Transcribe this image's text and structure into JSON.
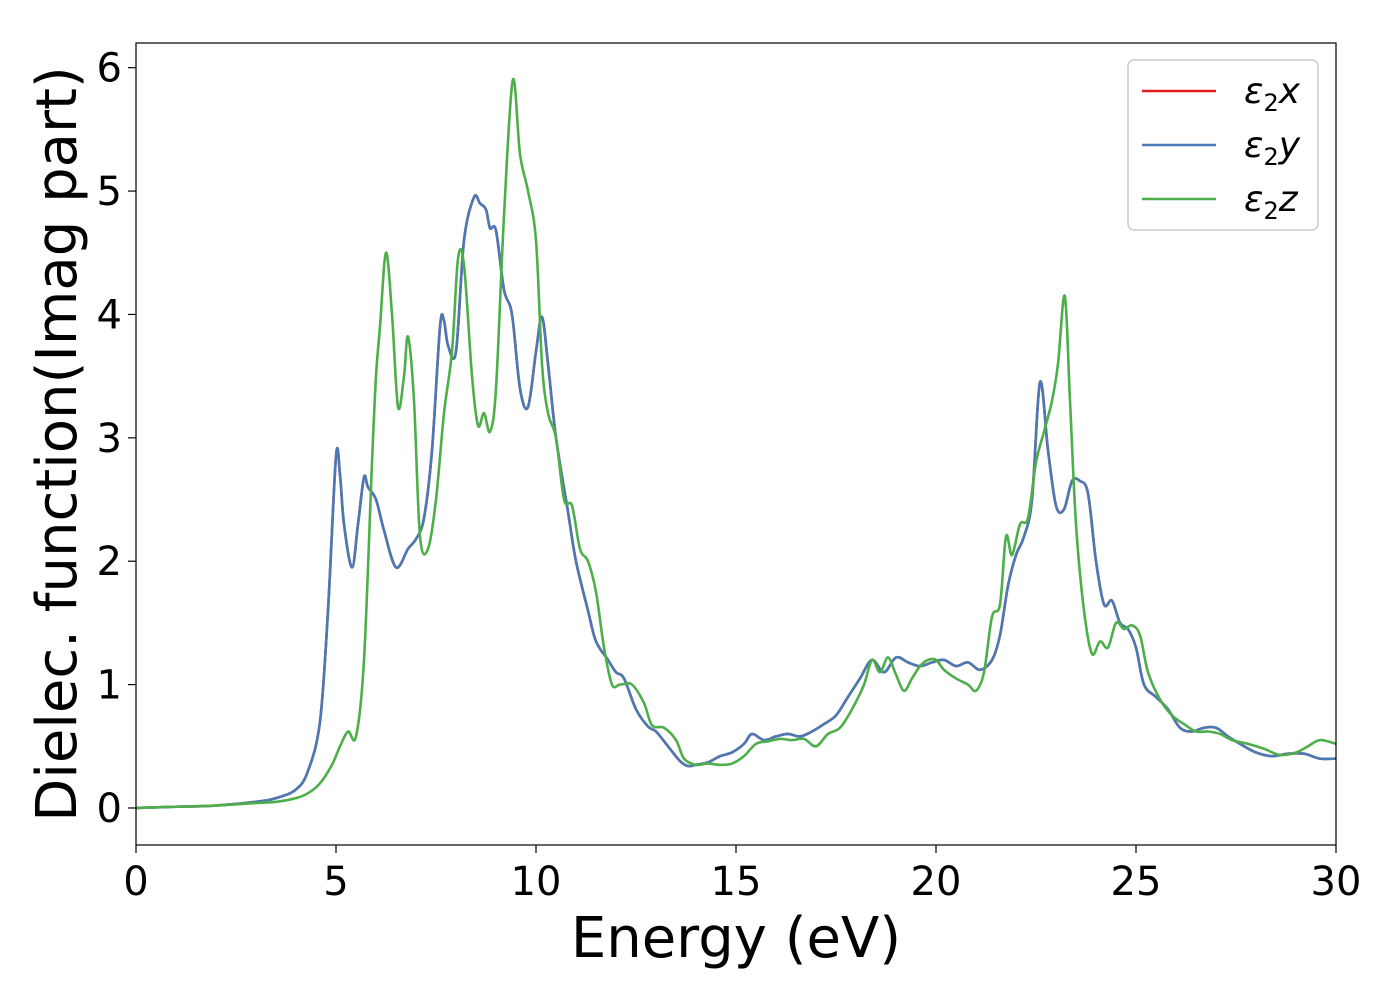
{
  "chart_data": {
    "type": "line",
    "xlabel": "Energy (eV)",
    "ylabel": "Dielec. function(Imag part)",
    "xlim": [
      0,
      30
    ],
    "ylim": [
      -0.3,
      6.2
    ],
    "xticks": [
      "0",
      "5",
      "10",
      "15",
      "20",
      "25",
      "30"
    ],
    "yticks": [
      "0",
      "1",
      "2",
      "3",
      "4",
      "5",
      "6"
    ],
    "grid": false,
    "legend_position": "top-right",
    "series": [
      {
        "name": "ε2x",
        "legend_base": "ε",
        "legend_sub": "2",
        "legend_tail": "x",
        "color": "#e41a1c",
        "x": [
          0,
          1,
          2,
          3,
          3.5,
          4,
          4.3,
          4.6,
          4.8,
          5.0,
          5.1,
          5.2,
          5.4,
          5.55,
          5.7,
          5.8,
          6.0,
          6.2,
          6.5,
          6.8,
          7.0,
          7.2,
          7.4,
          7.6,
          7.7,
          7.8,
          8.0,
          8.2,
          8.45,
          8.6,
          8.75,
          8.85,
          9.0,
          9.2,
          9.4,
          9.6,
          9.8,
          10.0,
          10.15,
          10.3,
          10.5,
          10.8,
          11.0,
          11.3,
          11.5,
          11.8,
          12.0,
          12.2,
          12.5,
          12.8,
          13.0,
          13.3,
          13.6,
          13.8,
          14.0,
          14.3,
          14.6,
          14.9,
          15.2,
          15.4,
          15.7,
          16.0,
          16.3,
          16.6,
          16.9,
          17.2,
          17.5,
          17.8,
          18.1,
          18.4,
          18.7,
          19.0,
          19.3,
          19.6,
          19.9,
          20.2,
          20.5,
          20.8,
          21.1,
          21.4,
          21.6,
          21.8,
          22.0,
          22.2,
          22.4,
          22.6,
          22.8,
          23.0,
          23.2,
          23.4,
          23.6,
          23.8,
          24.0,
          24.2,
          24.4,
          24.6,
          24.8,
          25.0,
          25.2,
          25.5,
          25.8,
          26.1,
          26.4,
          26.7,
          27.0,
          27.3,
          27.6,
          28.0,
          28.4,
          28.8,
          29.2,
          29.6,
          30.0
        ],
        "y": [
          0.0,
          0.01,
          0.02,
          0.05,
          0.08,
          0.15,
          0.3,
          0.7,
          1.6,
          2.85,
          2.7,
          2.3,
          1.95,
          2.3,
          2.68,
          2.6,
          2.5,
          2.25,
          1.95,
          2.1,
          2.18,
          2.35,
          2.9,
          3.9,
          3.95,
          3.75,
          3.7,
          4.6,
          4.95,
          4.9,
          4.85,
          4.7,
          4.68,
          4.2,
          4.0,
          3.4,
          3.25,
          3.7,
          3.98,
          3.6,
          3.0,
          2.4,
          2.0,
          1.6,
          1.35,
          1.2,
          1.1,
          1.05,
          0.8,
          0.66,
          0.62,
          0.5,
          0.38,
          0.34,
          0.35,
          0.37,
          0.42,
          0.45,
          0.52,
          0.6,
          0.55,
          0.58,
          0.6,
          0.58,
          0.62,
          0.68,
          0.75,
          0.9,
          1.05,
          1.2,
          1.1,
          1.22,
          1.18,
          1.15,
          1.18,
          1.2,
          1.15,
          1.18,
          1.12,
          1.2,
          1.4,
          1.8,
          2.05,
          2.2,
          2.5,
          3.45,
          2.9,
          2.45,
          2.42,
          2.65,
          2.65,
          2.55,
          2.0,
          1.65,
          1.68,
          1.5,
          1.45,
          1.3,
          1.0,
          0.9,
          0.8,
          0.65,
          0.62,
          0.65,
          0.65,
          0.58,
          0.52,
          0.45,
          0.42,
          0.44,
          0.44,
          0.4,
          0.4
        ]
      },
      {
        "name": "ε2y",
        "legend_base": "ε",
        "legend_sub": "2",
        "legend_tail": "y",
        "color": "#4a7ab5",
        "x": [
          0,
          1,
          2,
          3,
          3.5,
          4,
          4.3,
          4.6,
          4.8,
          5.0,
          5.1,
          5.2,
          5.4,
          5.55,
          5.7,
          5.8,
          6.0,
          6.2,
          6.5,
          6.8,
          7.0,
          7.2,
          7.4,
          7.6,
          7.7,
          7.8,
          8.0,
          8.2,
          8.45,
          8.6,
          8.75,
          8.85,
          9.0,
          9.2,
          9.4,
          9.6,
          9.8,
          10.0,
          10.15,
          10.3,
          10.5,
          10.8,
          11.0,
          11.3,
          11.5,
          11.8,
          12.0,
          12.2,
          12.5,
          12.8,
          13.0,
          13.3,
          13.6,
          13.8,
          14.0,
          14.3,
          14.6,
          14.9,
          15.2,
          15.4,
          15.7,
          16.0,
          16.3,
          16.6,
          16.9,
          17.2,
          17.5,
          17.8,
          18.1,
          18.4,
          18.7,
          19.0,
          19.3,
          19.6,
          19.9,
          20.2,
          20.5,
          20.8,
          21.1,
          21.4,
          21.6,
          21.8,
          22.0,
          22.2,
          22.4,
          22.6,
          22.8,
          23.0,
          23.2,
          23.4,
          23.6,
          23.8,
          24.0,
          24.2,
          24.4,
          24.6,
          24.8,
          25.0,
          25.2,
          25.5,
          25.8,
          26.1,
          26.4,
          26.7,
          27.0,
          27.3,
          27.6,
          28.0,
          28.4,
          28.8,
          29.2,
          29.6,
          30.0
        ],
        "y": [
          0.0,
          0.01,
          0.02,
          0.05,
          0.08,
          0.15,
          0.3,
          0.7,
          1.6,
          2.85,
          2.7,
          2.3,
          1.95,
          2.3,
          2.68,
          2.6,
          2.5,
          2.25,
          1.95,
          2.1,
          2.18,
          2.35,
          2.9,
          3.9,
          3.95,
          3.75,
          3.7,
          4.6,
          4.95,
          4.9,
          4.85,
          4.7,
          4.68,
          4.2,
          4.0,
          3.4,
          3.25,
          3.7,
          3.98,
          3.6,
          3.0,
          2.4,
          2.0,
          1.6,
          1.35,
          1.2,
          1.1,
          1.05,
          0.8,
          0.66,
          0.62,
          0.5,
          0.38,
          0.34,
          0.35,
          0.37,
          0.42,
          0.45,
          0.52,
          0.6,
          0.55,
          0.58,
          0.6,
          0.58,
          0.62,
          0.68,
          0.75,
          0.9,
          1.05,
          1.2,
          1.1,
          1.22,
          1.18,
          1.15,
          1.18,
          1.2,
          1.15,
          1.18,
          1.12,
          1.2,
          1.4,
          1.8,
          2.05,
          2.2,
          2.5,
          3.45,
          2.9,
          2.45,
          2.42,
          2.65,
          2.65,
          2.55,
          2.0,
          1.65,
          1.68,
          1.5,
          1.45,
          1.3,
          1.0,
          0.9,
          0.8,
          0.65,
          0.62,
          0.65,
          0.65,
          0.58,
          0.52,
          0.45,
          0.42,
          0.44,
          0.44,
          0.4,
          0.4
        ]
      },
      {
        "name": "ε2z",
        "legend_base": "ε",
        "legend_sub": "2",
        "legend_tail": "z",
        "color": "#4daf4a",
        "x": [
          0,
          1,
          2,
          3,
          3.5,
          4,
          4.3,
          4.6,
          4.9,
          5.1,
          5.3,
          5.5,
          5.7,
          5.9,
          6.0,
          6.1,
          6.25,
          6.4,
          6.55,
          6.7,
          6.8,
          6.95,
          7.1,
          7.3,
          7.5,
          7.7,
          7.9,
          8.05,
          8.2,
          8.4,
          8.55,
          8.7,
          8.85,
          9.0,
          9.2,
          9.42,
          9.6,
          9.8,
          10.0,
          10.15,
          10.3,
          10.5,
          10.7,
          10.9,
          11.1,
          11.3,
          11.5,
          11.7,
          11.9,
          12.1,
          12.4,
          12.7,
          12.9,
          13.2,
          13.5,
          13.7,
          14.0,
          14.3,
          14.6,
          14.9,
          15.2,
          15.5,
          15.8,
          16.1,
          16.4,
          16.7,
          17.0,
          17.3,
          17.6,
          17.9,
          18.2,
          18.4,
          18.6,
          18.8,
          19.0,
          19.2,
          19.4,
          19.6,
          19.8,
          20.0,
          20.2,
          20.5,
          20.8,
          21.0,
          21.2,
          21.4,
          21.6,
          21.75,
          21.9,
          22.1,
          22.3,
          22.5,
          22.7,
          22.9,
          23.05,
          23.22,
          23.35,
          23.5,
          23.7,
          23.9,
          24.1,
          24.3,
          24.5,
          24.7,
          24.9,
          25.1,
          25.3,
          25.6,
          25.9,
          26.2,
          26.5,
          26.8,
          27.1,
          27.4,
          27.8,
          28.2,
          28.6,
          29.0,
          29.3,
          29.6,
          30.0
        ],
        "y": [
          0.0,
          0.01,
          0.02,
          0.04,
          0.05,
          0.08,
          0.12,
          0.2,
          0.35,
          0.5,
          0.62,
          0.58,
          1.2,
          2.8,
          3.5,
          3.9,
          4.5,
          4.0,
          3.25,
          3.5,
          3.82,
          3.3,
          2.2,
          2.1,
          2.5,
          3.2,
          3.7,
          4.45,
          4.4,
          3.5,
          3.1,
          3.2,
          3.05,
          3.4,
          4.8,
          5.9,
          5.3,
          5.0,
          4.6,
          3.6,
          3.2,
          3.0,
          2.5,
          2.45,
          2.1,
          2.0,
          1.75,
          1.3,
          1.0,
          1.0,
          1.0,
          0.85,
          0.67,
          0.65,
          0.55,
          0.4,
          0.35,
          0.36,
          0.35,
          0.36,
          0.42,
          0.52,
          0.54,
          0.56,
          0.55,
          0.56,
          0.5,
          0.6,
          0.65,
          0.8,
          1.0,
          1.2,
          1.1,
          1.22,
          1.08,
          0.95,
          1.05,
          1.15,
          1.2,
          1.2,
          1.12,
          1.05,
          1.0,
          0.95,
          1.1,
          1.55,
          1.65,
          2.2,
          2.05,
          2.3,
          2.35,
          2.8,
          3.05,
          3.3,
          3.6,
          4.15,
          3.3,
          2.3,
          1.6,
          1.25,
          1.35,
          1.3,
          1.5,
          1.45,
          1.48,
          1.4,
          1.1,
          0.88,
          0.75,
          0.68,
          0.62,
          0.62,
          0.6,
          0.55,
          0.52,
          0.48,
          0.43,
          0.45,
          0.5,
          0.55,
          0.52
        ]
      }
    ]
  }
}
